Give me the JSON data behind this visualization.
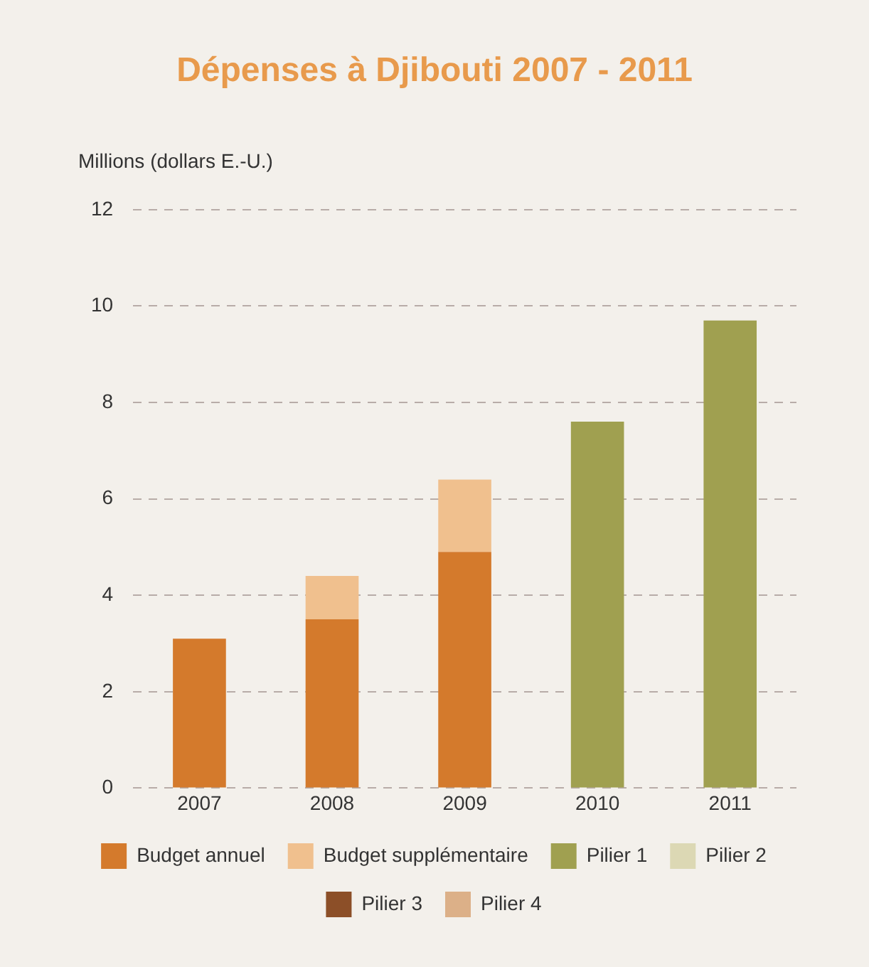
{
  "chart_data": {
    "type": "bar",
    "title": "Dépenses à Djibouti 2007 - 2011",
    "ylabel": "Millions (dollars E.-U.)",
    "categories": [
      "2007",
      "2008",
      "2009",
      "2010",
      "2011"
    ],
    "stacked": true,
    "series": [
      {
        "name": "Budget annuel",
        "color": "#d47a2c",
        "values": [
          3.1,
          3.5,
          4.9,
          null,
          null
        ]
      },
      {
        "name": "Budget supplémentaire",
        "color": "#f0c08e",
        "values": [
          null,
          0.9,
          1.5,
          null,
          null
        ]
      },
      {
        "name": "Pilier 1",
        "color": "#a0a050",
        "values": [
          null,
          null,
          null,
          7.6,
          9.7
        ]
      },
      {
        "name": "Pilier 2",
        "color": "#dcd8b4",
        "values": [
          null,
          null,
          null,
          null,
          null
        ]
      },
      {
        "name": "Pilier 3",
        "color": "#8c4f28",
        "values": [
          null,
          null,
          null,
          null,
          null
        ]
      },
      {
        "name": "Pilier 4",
        "color": "#dcb088",
        "values": [
          null,
          null,
          null,
          null,
          null
        ]
      }
    ],
    "ylim": [
      0,
      12
    ],
    "yticks": [
      0,
      2,
      4,
      6,
      8,
      10,
      12
    ],
    "grid": "y",
    "legend": "bottom"
  }
}
